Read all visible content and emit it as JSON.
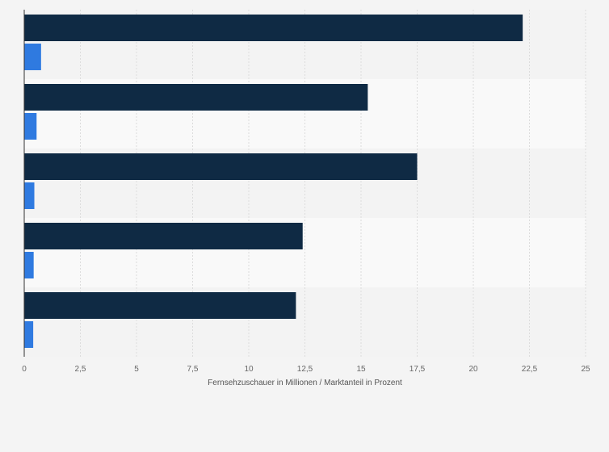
{
  "chart_data": {
    "type": "bar",
    "orientation": "horizontal",
    "categories": [
      "",
      "",
      "",
      "",
      ""
    ],
    "series": [
      {
        "values": [
          22.2,
          15.3,
          17.5,
          12.4,
          12.1
        ],
        "color": "#0f2a44"
      },
      {
        "values": [
          0.75,
          0.55,
          0.45,
          0.42,
          0.4
        ],
        "color": "#2f7ae0"
      }
    ],
    "xlabel": "Fernsehzuschauer in Millionen / Marktanteil in Prozent",
    "xlim": [
      0,
      25
    ],
    "xticks": [
      0,
      2.5,
      5,
      7.5,
      10,
      12.5,
      15,
      17.5,
      20,
      22.5,
      25
    ],
    "tick_labels": [
      "0",
      "2,5",
      "5",
      "7,5",
      "10",
      "12,5",
      "15",
      "17,5",
      "20",
      "22,5",
      "25"
    ],
    "grid": true,
    "band_colors": [
      "#f3f3f3",
      "#f9f9f9"
    ]
  }
}
